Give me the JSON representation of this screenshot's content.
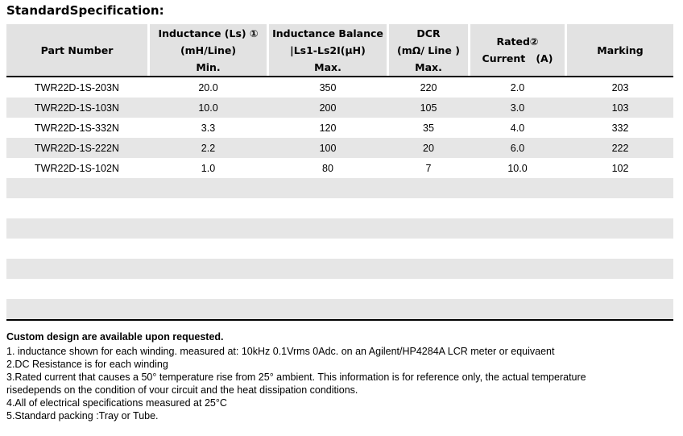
{
  "page": {
    "title": "StandardSpecification:"
  },
  "colors": {
    "header_fill": "#e2e2e2",
    "stripe_fill": "#e6e6e6",
    "border": "#000000",
    "text": "#000000"
  },
  "table": {
    "header": {
      "part_number": "Part Number",
      "inductance": {
        "l1": "Inductance (Ls) ①",
        "l2": "(mH/Line)",
        "l3": "Min."
      },
      "balance": {
        "l1": "Inductance Balance",
        "l2": "|Ls1-Ls2I(μH)",
        "l3": "Max."
      },
      "dcr": {
        "l1": "DCR",
        "l2": "(mΩ/ Line )",
        "l3": "Max."
      },
      "rated": {
        "l1": "Rated②",
        "l2": "Current   (A)"
      },
      "marking": "Marking"
    },
    "rows": [
      [
        "TWR22D-1S-203N",
        "20.0",
        "350",
        "220",
        "2.0",
        "203"
      ],
      [
        "TWR22D-1S-103N",
        "10.0",
        "200",
        "105",
        "3.0",
        "103"
      ],
      [
        "TWR22D-1S-332N",
        "3.3",
        "120",
        "35",
        "4.0",
        "332"
      ],
      [
        "TWR22D-1S-222N",
        "2.2",
        "100",
        "20",
        "6.0",
        "222"
      ],
      [
        "TWR22D-1S-102N",
        "1.0",
        "80",
        "7",
        "10.0",
        "102"
      ]
    ],
    "empty_row_count": 7
  },
  "notes": {
    "heading": "Custom design are available upon requested.",
    "lines": [
      "1. inductance shown for each winding. measured at: 10kHz 0.1Vrms 0Adc. on an Agilent/HP4284A LCR meter or equivaent",
      "2.DC Resistance is for each winding",
      "3.Rated current that causes a 50° temperature rise from 25° ambient. This information is for reference only, the actual temperature",
      "risedepends on the condition of vour circuit and the heat dissipation conditions.",
      "4.All of electrical specifications measured at 25°C",
      "5.Standard packing :Tray or Tube."
    ]
  }
}
